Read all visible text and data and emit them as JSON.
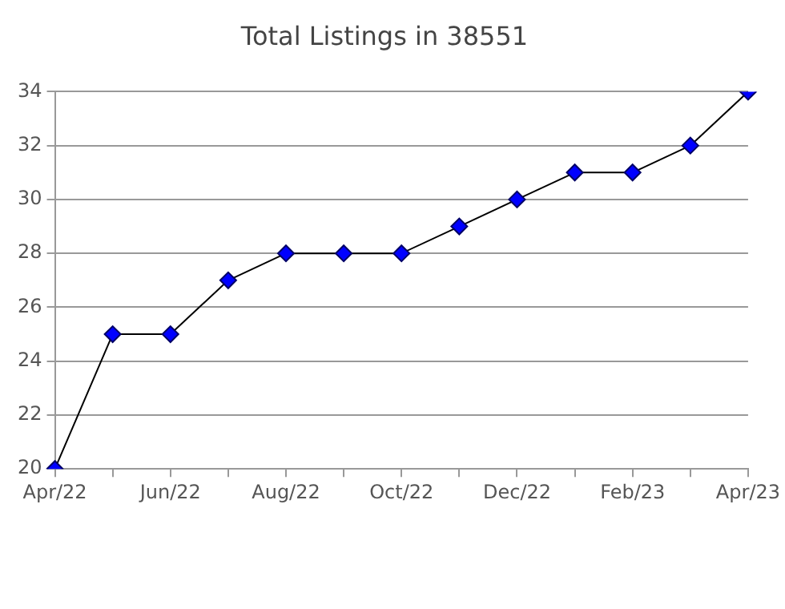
{
  "chart_data": {
    "type": "line",
    "title": "Total Listings in 38551",
    "categories": [
      "Apr/22",
      null,
      "Jun/22",
      null,
      "Aug/22",
      null,
      "Oct/22",
      null,
      "Dec/22",
      null,
      "Feb/23",
      null,
      "Apr/23"
    ],
    "series": [
      {
        "color": "#0000ff",
        "values": [
          20,
          25,
          25,
          27,
          28,
          28,
          28,
          29,
          30,
          31,
          31,
          32,
          34
        ]
      }
    ],
    "ylim": [
      20,
      34
    ],
    "yticks": [
      20,
      22,
      24,
      26,
      28,
      30,
      32,
      34
    ],
    "grid": "y",
    "legend": false,
    "marker": "diamond",
    "line_style": "solid"
  }
}
